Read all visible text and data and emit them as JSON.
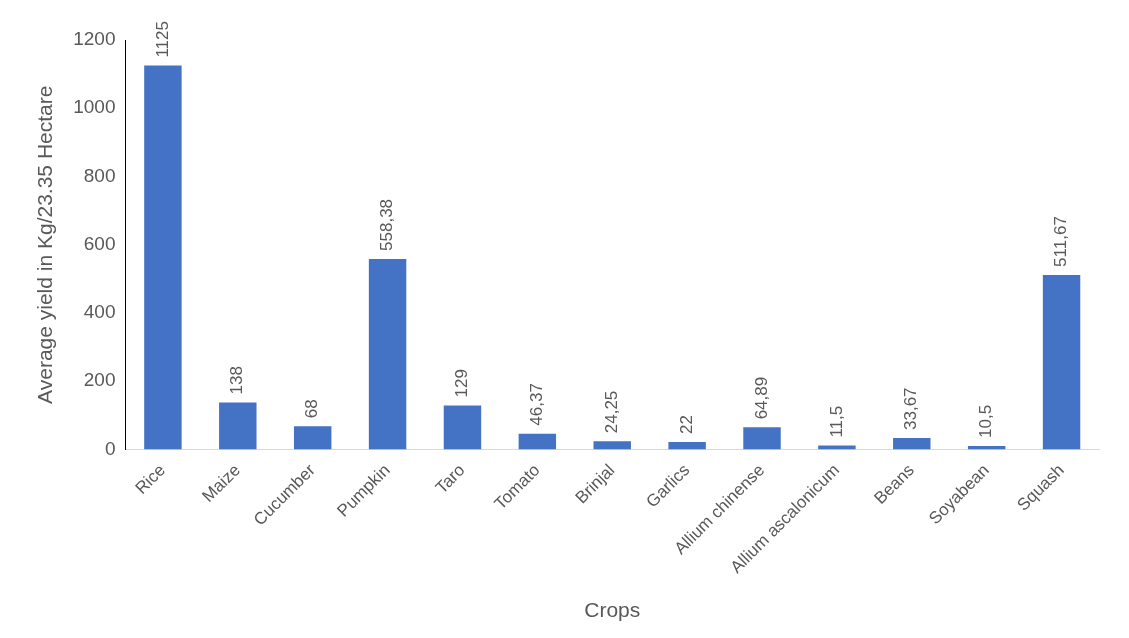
{
  "chart_data": {
    "type": "bar",
    "xlabel": "Crops",
    "ylabel": "Average yield in Kg/23.35 Hectare",
    "categories": [
      "Rice",
      "Maize",
      "Cucumber",
      "Pumpkin",
      "Taro",
      "Tomato",
      "Brinjal",
      "Garlics",
      "Allium chinense",
      "Allium ascalonicum",
      "Beans",
      "Soyabean",
      "Squash"
    ],
    "values": [
      1125,
      138,
      68,
      558.38,
      129,
      46.37,
      24.25,
      22,
      64.89,
      11.5,
      33.67,
      10.5,
      511.67
    ],
    "value_labels": [
      "1125",
      "138",
      "68",
      "558,38",
      "129",
      "46,37",
      "24,25",
      "22",
      "64,89",
      "11,5",
      "33,67",
      "10,5",
      "511,67"
    ],
    "color": "#4472c4",
    "ylim": [
      0,
      1200
    ],
    "yticks": [
      0,
      200,
      400,
      600,
      800,
      1000,
      1200
    ],
    "grid": false,
    "legend": false
  }
}
